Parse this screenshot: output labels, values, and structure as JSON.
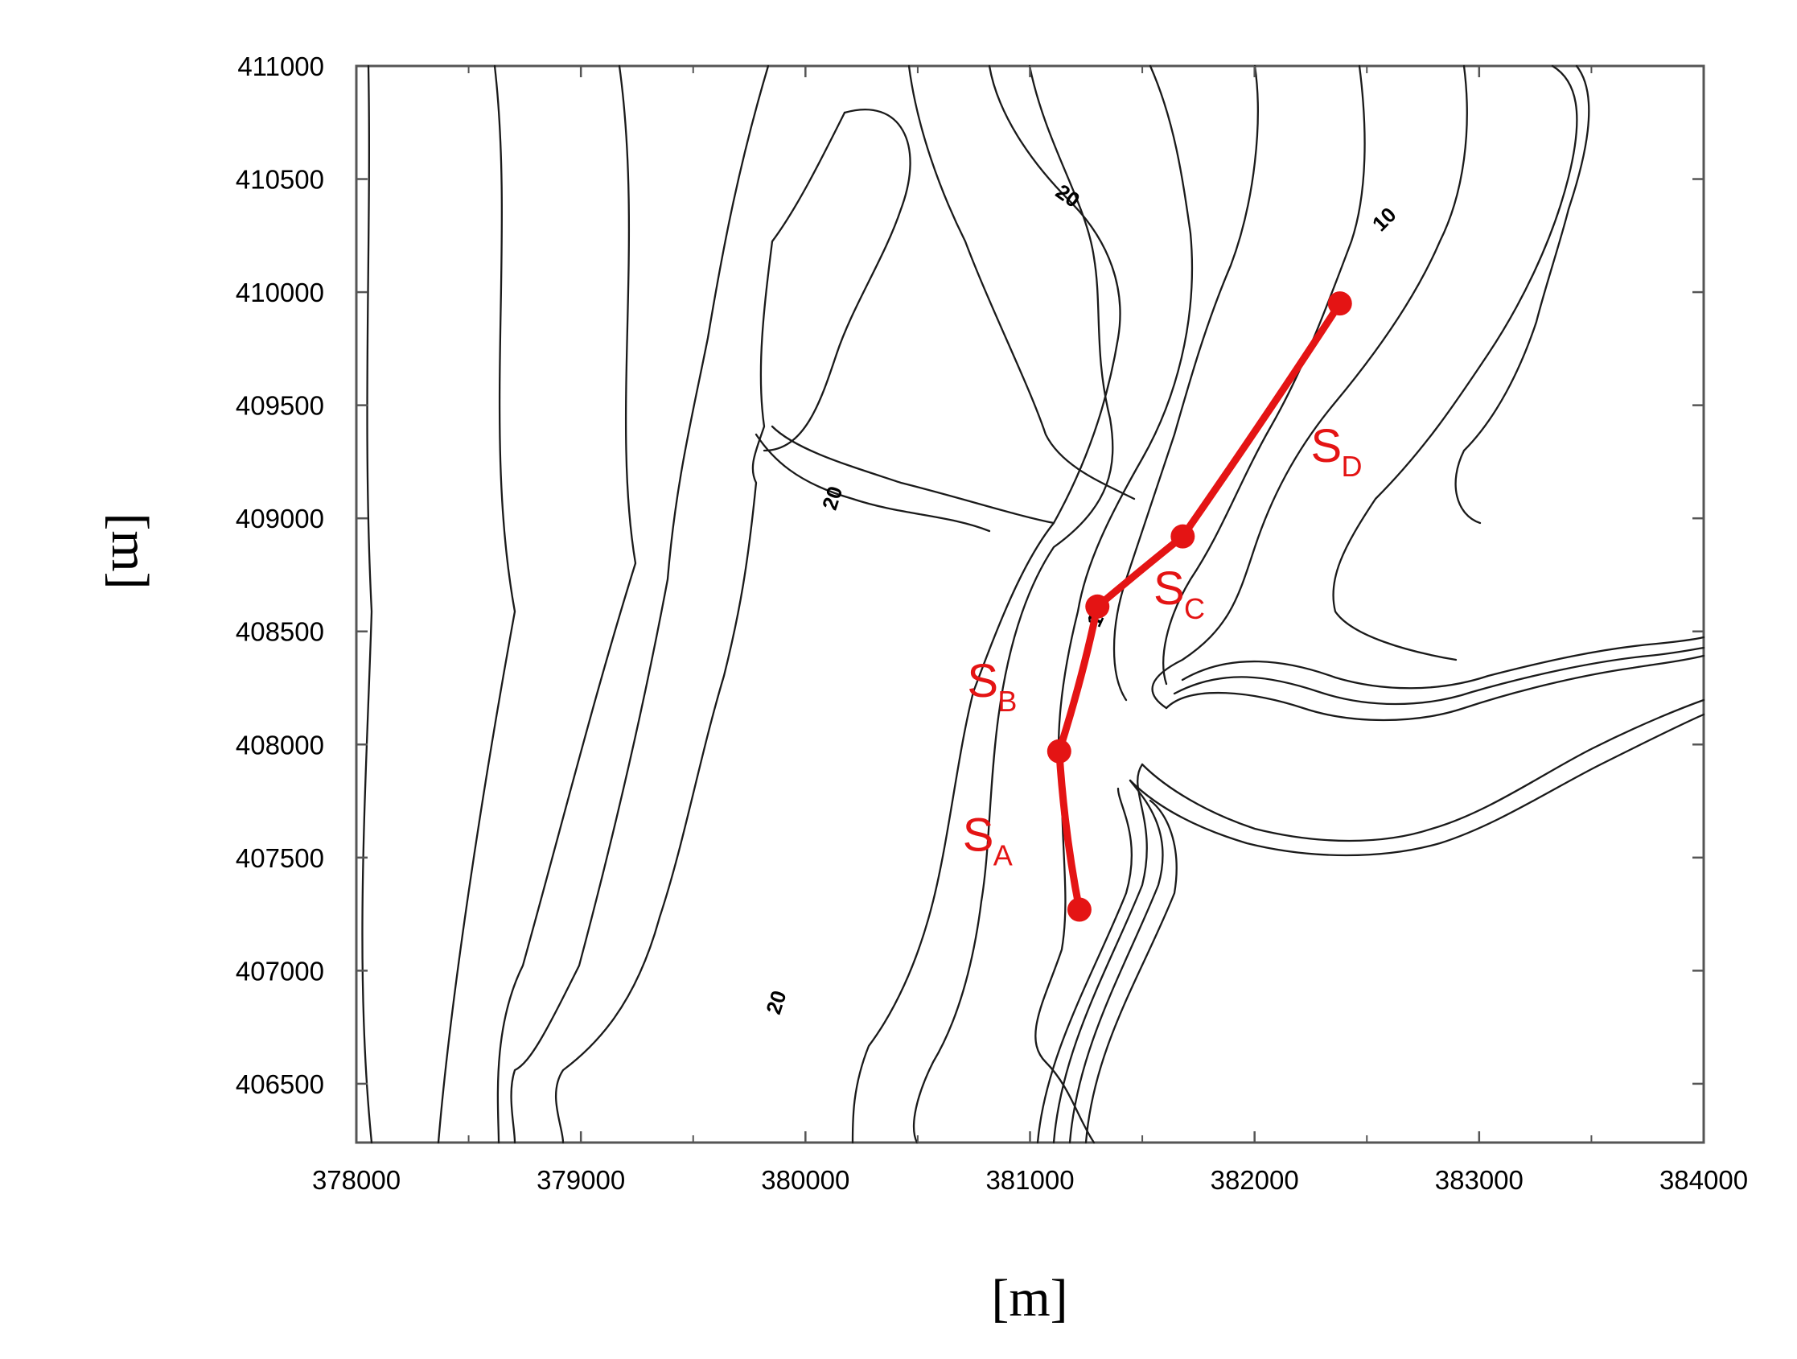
{
  "colors": {
    "route": "#e41414",
    "contour": "#1a1a1a",
    "frame": "#555555"
  },
  "axes": {
    "x_label": "[m]",
    "y_label": "[m]",
    "x_range": [
      378000,
      384000
    ],
    "y_range": [
      406240,
      411000
    ],
    "x_ticks": [
      "378000",
      "379000",
      "380000",
      "381000",
      "382000",
      "383000",
      "384000"
    ],
    "y_ticks": [
      "411000",
      "410500",
      "410000",
      "409500",
      "409000",
      "408500",
      "408000",
      "407500",
      "407000",
      "406500"
    ]
  },
  "contour_labels": [
    {
      "text": "20",
      "x": 381150,
      "y": 410400,
      "rotate": 35
    },
    {
      "text": "20",
      "x": 380150,
      "y": 409080,
      "rotate": -72
    },
    {
      "text": "20",
      "x": 379900,
      "y": 406850,
      "rotate": -72
    },
    {
      "text": "10",
      "x": 382600,
      "y": 410300,
      "rotate": -45
    },
    {
      "text": "10",
      "x": 381330,
      "y": 408560,
      "rotate": -65
    }
  ],
  "route": {
    "nodes": [
      {
        "x": 381220,
        "y": 407270
      },
      {
        "x": 381130,
        "y": 407970
      },
      {
        "x": 381300,
        "y": 408610
      },
      {
        "x": 381680,
        "y": 408920
      },
      {
        "x": 382380,
        "y": 409950
      }
    ],
    "segments": [
      {
        "letter": "S",
        "sub": "A",
        "x": 380700,
        "y": 407530
      },
      {
        "letter": "S",
        "sub": "B",
        "x": 380720,
        "y": 408210
      },
      {
        "letter": "S",
        "sub": "C",
        "x": 381550,
        "y": 408620
      },
      {
        "letter": "S",
        "sub": "D",
        "x": 382250,
        "y": 409250
      }
    ]
  }
}
